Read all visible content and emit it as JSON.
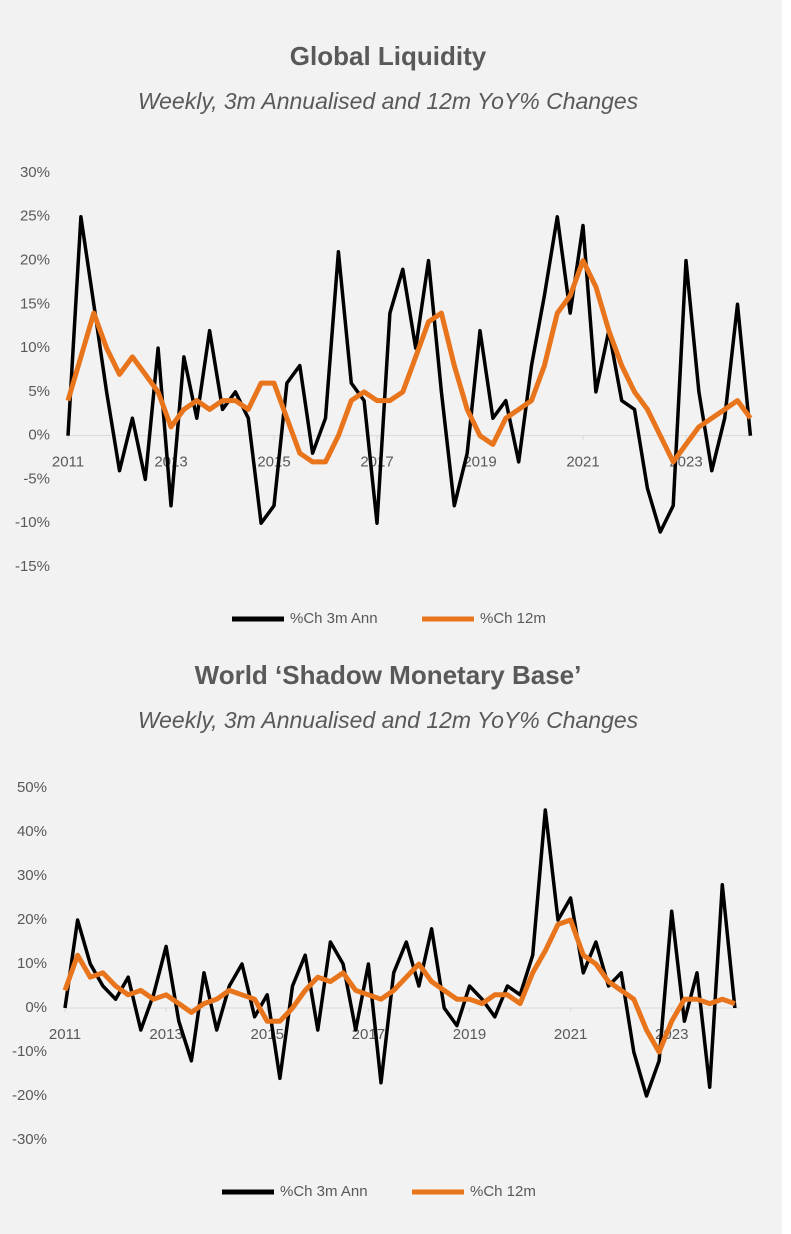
{
  "chart_data": [
    {
      "type": "line",
      "title": "Global Liquidity",
      "subtitle": "Weekly, 3m Annualised and 12m YoY% Changes",
      "x": [
        2011,
        2011.25,
        2011.5,
        2011.75,
        2012,
        2012.25,
        2012.5,
        2012.75,
        2013,
        2013.25,
        2013.5,
        2013.75,
        2014,
        2014.25,
        2014.5,
        2014.75,
        2015,
        2015.25,
        2015.5,
        2015.75,
        2016,
        2016.25,
        2016.5,
        2016.75,
        2017,
        2017.25,
        2017.5,
        2017.75,
        2018,
        2018.25,
        2018.5,
        2018.75,
        2019,
        2019.25,
        2019.5,
        2019.75,
        2020,
        2020.25,
        2020.5,
        2020.75,
        2021,
        2021.25,
        2021.5,
        2021.75,
        2022,
        2022.25,
        2022.5,
        2022.75,
        2023,
        2023.25,
        2023.5,
        2023.75,
        2024,
        2024.25
      ],
      "series": [
        {
          "name": "%Ch 3m Ann",
          "color": "#000000",
          "values": [
            0,
            25,
            15,
            5,
            -4,
            2,
            -5,
            10,
            -8,
            9,
            2,
            12,
            3,
            5,
            2,
            -10,
            -8,
            6,
            8,
            -2,
            2,
            21,
            6,
            4,
            -10,
            14,
            19,
            10,
            20,
            5,
            -8,
            -2,
            12,
            2,
            4,
            -3,
            8,
            16,
            25,
            14,
            24,
            5,
            12,
            4,
            3,
            -6,
            -11,
            -8,
            20,
            5,
            -4,
            2,
            15,
            0
          ]
        },
        {
          "name": "%Ch 12m",
          "color": "#e8741c",
          "values": [
            4,
            9,
            14,
            10,
            7,
            9,
            7,
            5,
            1,
            3,
            4,
            3,
            4,
            4,
            3,
            6,
            6,
            2,
            -2,
            -3,
            -3,
            0,
            4,
            5,
            4,
            4,
            5,
            9,
            13,
            14,
            8,
            3,
            0,
            -1,
            2,
            3,
            4,
            8,
            14,
            16,
            20,
            17,
            12,
            8,
            5,
            3,
            0,
            -3,
            -1,
            1,
            2,
            3,
            4,
            2
          ]
        }
      ],
      "xlim": [
        2011,
        2024.3
      ],
      "xticks": [
        2011,
        2013,
        2015,
        2017,
        2019,
        2021,
        2023
      ],
      "ylim": [
        -15,
        30
      ],
      "yticks": [
        {
          "value": 30,
          "label": "30%"
        },
        {
          "value": 25,
          "label": "25%"
        },
        {
          "value": 20,
          "label": "20%"
        },
        {
          "value": 15,
          "label": "15%"
        },
        {
          "value": 10,
          "label": "10%"
        },
        {
          "value": 5,
          "label": "5%"
        },
        {
          "value": 0,
          "label": "0%"
        },
        {
          "value": -5,
          "label": "-5%"
        },
        {
          "value": -10,
          "label": "-10%"
        },
        {
          "value": -15,
          "label": "-15%"
        }
      ],
      "grid": false,
      "legend": "bottom"
    },
    {
      "type": "line",
      "title": "World ‘Shadow Monetary Base’",
      "subtitle": "Weekly, 3m Annualised and 12m YoY% Changes",
      "x": [
        2011,
        2011.25,
        2011.5,
        2011.75,
        2012,
        2012.25,
        2012.5,
        2012.75,
        2013,
        2013.25,
        2013.5,
        2013.75,
        2014,
        2014.25,
        2014.5,
        2014.75,
        2015,
        2015.25,
        2015.5,
        2015.75,
        2016,
        2016.25,
        2016.5,
        2016.75,
        2017,
        2017.25,
        2017.5,
        2017.75,
        2018,
        2018.25,
        2018.5,
        2018.75,
        2019,
        2019.25,
        2019.5,
        2019.75,
        2020,
        2020.25,
        2020.5,
        2020.75,
        2021,
        2021.25,
        2021.5,
        2021.75,
        2022,
        2022.25,
        2022.5,
        2022.75,
        2023,
        2023.25,
        2023.5,
        2023.75,
        2024,
        2024.25
      ],
      "series": [
        {
          "name": "%Ch 3m Ann",
          "color": "#000000",
          "values": [
            0,
            20,
            10,
            5,
            2,
            7,
            -5,
            3,
            14,
            -3,
            -12,
            8,
            -5,
            5,
            10,
            -2,
            3,
            -16,
            5,
            12,
            -5,
            15,
            10,
            -5,
            10,
            -17,
            8,
            15,
            5,
            18,
            0,
            -4,
            5,
            2,
            -2,
            5,
            3,
            12,
            45,
            20,
            25,
            8,
            15,
            5,
            8,
            -10,
            -20,
            -12,
            22,
            -3,
            8,
            -18,
            28,
            0
          ]
        },
        {
          "name": "%Ch 12m",
          "color": "#e8741c",
          "values": [
            4,
            12,
            7,
            8,
            5,
            3,
            4,
            2,
            3,
            1,
            -1,
            1,
            2,
            4,
            3,
            2,
            -3,
            -3,
            0,
            4,
            7,
            6,
            8,
            4,
            3,
            2,
            4,
            7,
            10,
            6,
            4,
            2,
            2,
            1,
            3,
            3,
            1,
            8,
            13,
            19,
            20,
            12,
            10,
            6,
            4,
            2,
            -5,
            -10,
            -3,
            2,
            2,
            1,
            2,
            1
          ]
        }
      ],
      "xlim": [
        2011,
        2024.35
      ],
      "xticks": [
        2011,
        2013,
        2015,
        2017,
        2019,
        2021,
        2023
      ],
      "ylim": [
        -30,
        50
      ],
      "yticks": [
        {
          "value": 50,
          "label": "50%"
        },
        {
          "value": 40,
          "label": "40%"
        },
        {
          "value": 30,
          "label": "30%"
        },
        {
          "value": 20,
          "label": "20%"
        },
        {
          "value": 10,
          "label": "10%"
        },
        {
          "value": 0,
          "label": "0%"
        },
        {
          "value": -10,
          "label": "-10%"
        },
        {
          "value": -20,
          "label": "-20%"
        },
        {
          "value": -30,
          "label": "-30%"
        }
      ],
      "grid": false,
      "legend": "bottom"
    }
  ]
}
